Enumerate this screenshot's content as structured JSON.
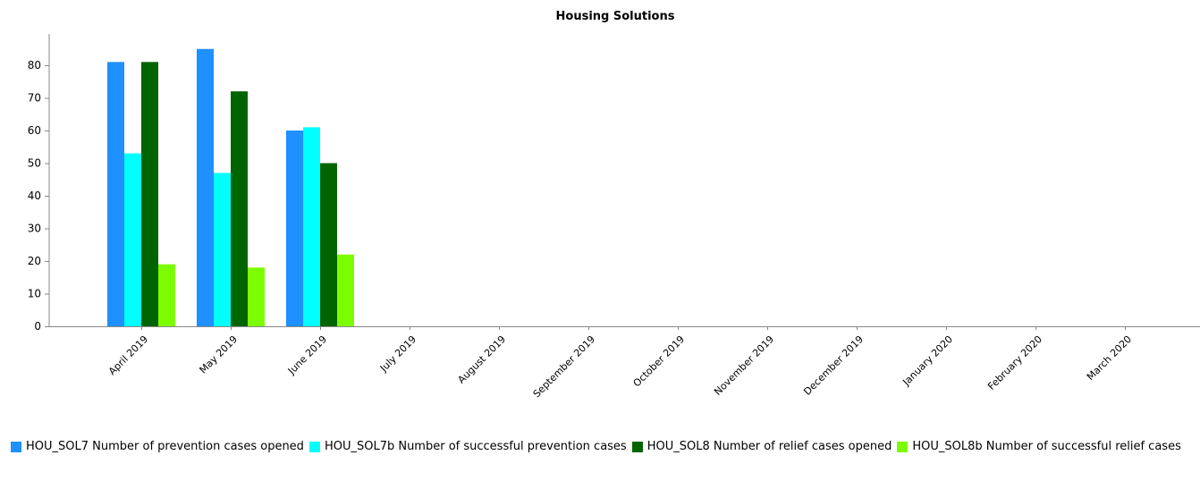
{
  "chart_data": {
    "type": "bar",
    "title": "Housing Solutions",
    "xlabel": "",
    "ylabel": "",
    "ylim": [
      0,
      88
    ],
    "yticks": [
      0,
      10,
      20,
      30,
      40,
      50,
      60,
      70,
      80
    ],
    "grid": false,
    "legend_position": "bottom",
    "categories": [
      "April 2019",
      "May 2019",
      "June 2019",
      "July 2019",
      "August 2019",
      "September 2019",
      "October 2019",
      "November 2019",
      "December 2019",
      "January 2020",
      "February 2020",
      "March 2020"
    ],
    "series": [
      {
        "name": "HOU_SOL7 Number of prevention cases opened",
        "color": "#1E90FF",
        "values": [
          81,
          85,
          60,
          null,
          null,
          null,
          null,
          null,
          null,
          null,
          null,
          null
        ]
      },
      {
        "name": "HOU_SOL7b Number of successful prevention cases",
        "color": "#00FFFF",
        "values": [
          53,
          47,
          61,
          null,
          null,
          null,
          null,
          null,
          null,
          null,
          null,
          null
        ]
      },
      {
        "name": "HOU_SOL8 Number of relief cases opened",
        "color": "#006400",
        "values": [
          81,
          72,
          50,
          null,
          null,
          null,
          null,
          null,
          null,
          null,
          null,
          null
        ]
      },
      {
        "name": "HOU_SOL8b Number of successful relief cases",
        "color": "#7CFC00",
        "values": [
          19,
          18,
          22,
          null,
          null,
          null,
          null,
          null,
          null,
          null,
          null,
          null
        ]
      }
    ]
  }
}
